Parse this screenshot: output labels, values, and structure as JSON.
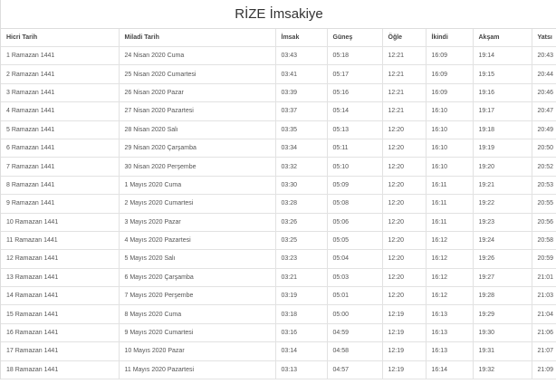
{
  "title": "RİZE İmsakiye",
  "columns": [
    "Hicri Tarih",
    "Miladi Tarih",
    "İmsak",
    "Güneş",
    "Öğle",
    "İkindi",
    "Akşam",
    "Yatsı"
  ],
  "rows": [
    [
      "1 Ramazan 1441",
      "24 Nisan 2020 Cuma",
      "03:43",
      "05:18",
      "12:21",
      "16:09",
      "19:14",
      "20:43"
    ],
    [
      "2 Ramazan 1441",
      "25 Nisan 2020 Cumartesi",
      "03:41",
      "05:17",
      "12:21",
      "16:09",
      "19:15",
      "20:44"
    ],
    [
      "3 Ramazan 1441",
      "26 Nisan 2020 Pazar",
      "03:39",
      "05:16",
      "12:21",
      "16:09",
      "19:16",
      "20:46"
    ],
    [
      "4 Ramazan 1441",
      "27 Nisan 2020 Pazartesi",
      "03:37",
      "05:14",
      "12:21",
      "16:10",
      "19:17",
      "20:47"
    ],
    [
      "5 Ramazan 1441",
      "28 Nisan 2020 Salı",
      "03:35",
      "05:13",
      "12:20",
      "16:10",
      "19:18",
      "20:49"
    ],
    [
      "6 Ramazan 1441",
      "29 Nisan 2020 Çarşamba",
      "03:34",
      "05:11",
      "12:20",
      "16:10",
      "19:19",
      "20:50"
    ],
    [
      "7 Ramazan 1441",
      "30 Nisan 2020 Perşembe",
      "03:32",
      "05:10",
      "12:20",
      "16:10",
      "19:20",
      "20:52"
    ],
    [
      "8 Ramazan 1441",
      "1 Mayıs 2020 Cuma",
      "03:30",
      "05:09",
      "12:20",
      "16:11",
      "19:21",
      "20:53"
    ],
    [
      "9 Ramazan 1441",
      "2 Mayıs 2020 Cumartesi",
      "03:28",
      "05:08",
      "12:20",
      "16:11",
      "19:22",
      "20:55"
    ],
    [
      "10 Ramazan 1441",
      "3 Mayıs 2020 Pazar",
      "03:26",
      "05:06",
      "12:20",
      "16:11",
      "19:23",
      "20:56"
    ],
    [
      "11 Ramazan 1441",
      "4 Mayıs 2020 Pazartesi",
      "03:25",
      "05:05",
      "12:20",
      "16:12",
      "19:24",
      "20:58"
    ],
    [
      "12 Ramazan 1441",
      "5 Mayıs 2020 Salı",
      "03:23",
      "05:04",
      "12:20",
      "16:12",
      "19:26",
      "20:59"
    ],
    [
      "13 Ramazan 1441",
      "6 Mayıs 2020 Çarşamba",
      "03:21",
      "05:03",
      "12:20",
      "16:12",
      "19:27",
      "21:01"
    ],
    [
      "14 Ramazan 1441",
      "7 Mayıs 2020 Perşembe",
      "03:19",
      "05:01",
      "12:20",
      "16:12",
      "19:28",
      "21:03"
    ],
    [
      "15 Ramazan 1441",
      "8 Mayıs 2020 Cuma",
      "03:18",
      "05:00",
      "12:19",
      "16:13",
      "19:29",
      "21:04"
    ],
    [
      "16 Ramazan 1441",
      "9 Mayıs 2020 Cumartesi",
      "03:16",
      "04:59",
      "12:19",
      "16:13",
      "19:30",
      "21:06"
    ],
    [
      "17 Ramazan 1441",
      "10 Mayıs 2020 Pazar",
      "03:14",
      "04:58",
      "12:19",
      "16:13",
      "19:31",
      "21:07"
    ],
    [
      "18 Ramazan 1441",
      "11 Mayıs 2020 Pazartesi",
      "03:13",
      "04:57",
      "12:19",
      "16:14",
      "19:32",
      "21:09"
    ]
  ]
}
